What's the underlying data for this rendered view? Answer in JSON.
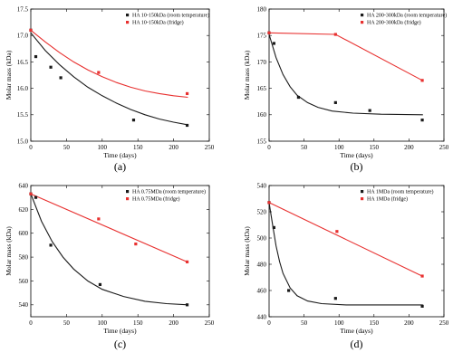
{
  "colors": {
    "room": "#1a1a1a",
    "fridge": "#e8302f",
    "axis": "#000000"
  },
  "chart_data": [
    {
      "type": "scatter",
      "panel_label": "(a)",
      "xlabel": "Time (days)",
      "ylabel": "Molar mass (kDa)",
      "xlim": [
        0,
        250
      ],
      "ylim": [
        15.0,
        17.5
      ],
      "xticks": [
        0,
        50,
        100,
        150,
        200,
        250
      ],
      "yticks": [
        "15.0",
        "15.5",
        "16.0",
        "16.5",
        "17.0",
        "17.5"
      ],
      "legend_position": "top-right",
      "series": [
        {
          "name": "HA 10-150kDa (room temperature)",
          "color": "#1a1a1a",
          "points": [
            [
              0,
              17.1
            ],
            [
              7,
              16.6
            ],
            [
              28,
              16.4
            ],
            [
              42,
              16.2
            ],
            [
              144,
              15.4
            ],
            [
              219,
              15.3
            ]
          ],
          "fit": [
            [
              0,
              17.05
            ],
            [
              20,
              16.72
            ],
            [
              40,
              16.45
            ],
            [
              60,
              16.22
            ],
            [
              80,
              16.02
            ],
            [
              100,
              15.86
            ],
            [
              120,
              15.72
            ],
            [
              140,
              15.6
            ],
            [
              160,
              15.5
            ],
            [
              180,
              15.42
            ],
            [
              200,
              15.36
            ],
            [
              220,
              15.31
            ]
          ]
        },
        {
          "name": "HA 10-150kDa (fridge)",
          "color": "#e8302f",
          "points": [
            [
              0,
              17.1
            ],
            [
              95,
              16.3
            ],
            [
              219,
              15.9
            ]
          ],
          "fit": [
            [
              0,
              17.1
            ],
            [
              20,
              16.88
            ],
            [
              40,
              16.68
            ],
            [
              60,
              16.5
            ],
            [
              80,
              16.35
            ],
            [
              100,
              16.22
            ],
            [
              120,
              16.11
            ],
            [
              140,
              16.02
            ],
            [
              160,
              15.95
            ],
            [
              180,
              15.9
            ],
            [
              200,
              15.86
            ],
            [
              220,
              15.83
            ]
          ]
        }
      ]
    },
    {
      "type": "scatter",
      "panel_label": "(b)",
      "xlabel": "Time (days)",
      "ylabel": "Molar mass (kDa)",
      "xlim": [
        0,
        250
      ],
      "ylim": [
        155,
        180
      ],
      "xticks": [
        0,
        50,
        100,
        150,
        200,
        250
      ],
      "yticks": [
        "155",
        "160",
        "165",
        "170",
        "175",
        "180"
      ],
      "legend_position": "top-right",
      "series": [
        {
          "name": "HA 200-300kDa (room temperature)",
          "color": "#1a1a1a",
          "points": [
            [
              0,
              175.5
            ],
            [
              7,
              173.5
            ],
            [
              42,
              163.3
            ],
            [
              95,
              162.3
            ],
            [
              144,
              160.8
            ],
            [
              219,
              159.0
            ]
          ],
          "fit": [
            [
              0,
              175.2
            ],
            [
              10,
              170.8
            ],
            [
              20,
              167.6
            ],
            [
              30,
              165.3
            ],
            [
              40,
              163.7
            ],
            [
              55,
              162.3
            ],
            [
              70,
              161.4
            ],
            [
              90,
              160.7
            ],
            [
              120,
              160.3
            ],
            [
              160,
              160.1
            ],
            [
              220,
              160.0
            ]
          ]
        },
        {
          "name": "HA 200-300kDa (fridge)",
          "color": "#e8302f",
          "points": [
            [
              0,
              175.5
            ],
            [
              95,
              175.2
            ],
            [
              219,
              166.5
            ]
          ],
          "fit": [
            [
              0,
              175.5
            ],
            [
              95,
              175.2
            ],
            [
              219,
              166.5
            ]
          ]
        }
      ]
    },
    {
      "type": "scatter",
      "panel_label": "(c)",
      "xlabel": "Time (days)",
      "ylabel": "Molar mass (kDa)",
      "xlim": [
        0,
        250
      ],
      "ylim": [
        530,
        640
      ],
      "xticks": [
        0,
        50,
        100,
        150,
        200,
        250
      ],
      "yticks": [
        "540",
        "560",
        "580",
        "600",
        "620",
        "640"
      ],
      "legend_position": "top-right",
      "series": [
        {
          "name": "HA 0.75MDa (room temperature)",
          "color": "#1a1a1a",
          "points": [
            [
              0,
              633
            ],
            [
              7,
              630
            ],
            [
              28,
              590
            ],
            [
              97,
              557
            ],
            [
              219,
              540
            ]
          ],
          "fit": [
            [
              0,
              633
            ],
            [
              15,
              610
            ],
            [
              30,
              593
            ],
            [
              45,
              580
            ],
            [
              60,
              570
            ],
            [
              80,
              560
            ],
            [
              100,
              553
            ],
            [
              130,
              547
            ],
            [
              160,
              543
            ],
            [
              190,
              541
            ],
            [
              220,
              540
            ]
          ]
        },
        {
          "name": "HA 0.75MDa (fridge)",
          "color": "#e8302f",
          "points": [
            [
              0,
              633
            ],
            [
              95,
              612
            ],
            [
              147,
              591
            ],
            [
              219,
              576
            ]
          ],
          "fit": [
            [
              0,
              633
            ],
            [
              219,
              576
            ]
          ]
        }
      ]
    },
    {
      "type": "scatter",
      "panel_label": "(d)",
      "xlabel": "Time (days)",
      "ylabel": "Molar mass (kDa)",
      "xlim": [
        0,
        250
      ],
      "ylim": [
        440,
        540
      ],
      "xticks": [
        0,
        50,
        100,
        150,
        200,
        250
      ],
      "yticks": [
        "440",
        "460",
        "480",
        "500",
        "520",
        "540"
      ],
      "legend_position": "top-right",
      "series": [
        {
          "name": "HA 1MDa (room temperature)",
          "color": "#1a1a1a",
          "points": [
            [
              0,
              527
            ],
            [
              7,
              508
            ],
            [
              28,
              460
            ],
            [
              95,
              454
            ],
            [
              219,
              448
            ]
          ],
          "fit": [
            [
              0,
              527
            ],
            [
              5,
              510
            ],
            [
              10,
              494
            ],
            [
              15,
              482
            ],
            [
              20,
              473
            ],
            [
              30,
              462
            ],
            [
              40,
              456
            ],
            [
              55,
              452
            ],
            [
              75,
              450
            ],
            [
              110,
              449
            ],
            [
              220,
              449
            ]
          ]
        },
        {
          "name": "HA 1MDa (fridge)",
          "color": "#e8302f",
          "points": [
            [
              0,
              527
            ],
            [
              97,
              505
            ],
            [
              219,
              471
            ]
          ],
          "fit": [
            [
              0,
              527
            ],
            [
              219,
              471
            ]
          ]
        }
      ]
    }
  ]
}
